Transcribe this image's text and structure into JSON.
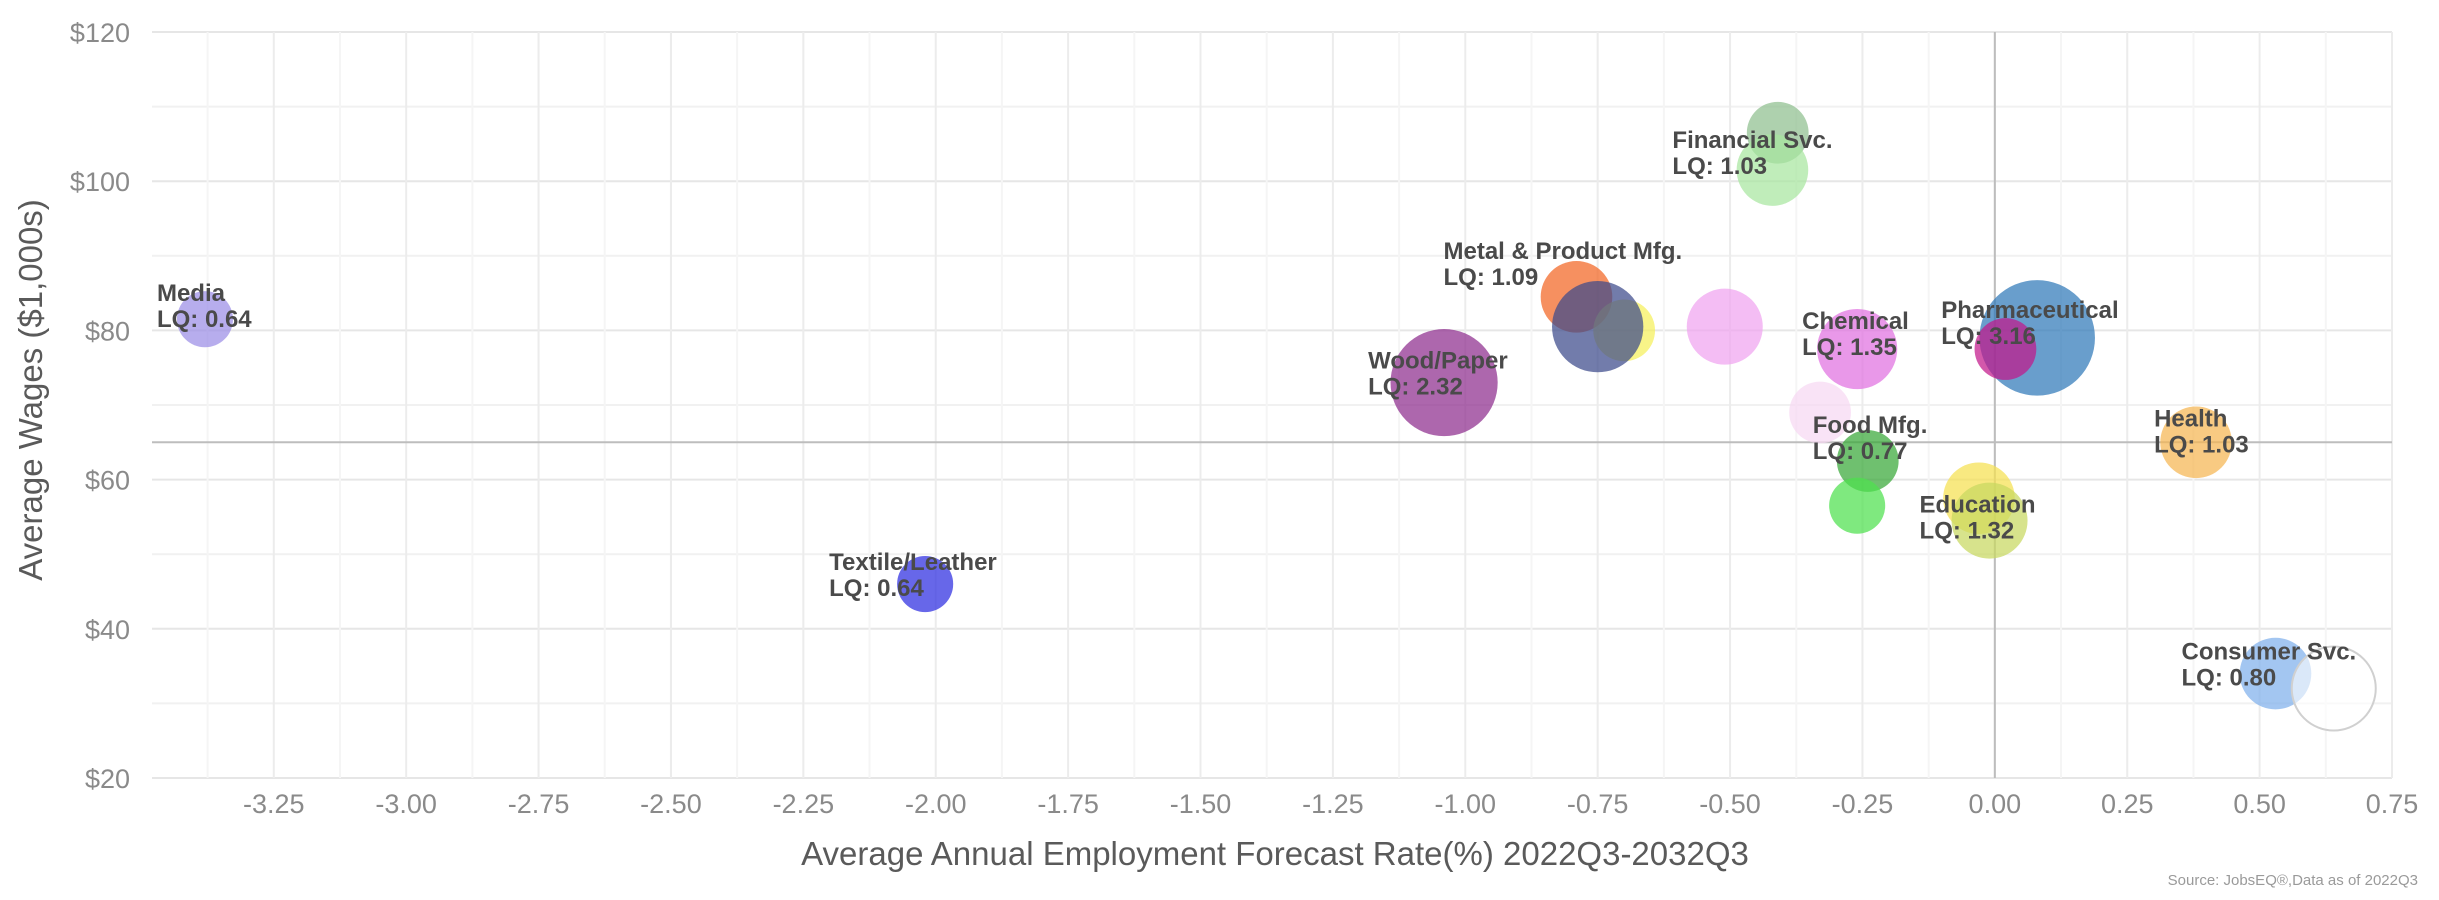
{
  "chart_data": {
    "type": "scatter",
    "subtype": "bubble",
    "xlabel": "Average Annual Employment Forecast Rate(%) 2022Q3-2032Q3",
    "ylabel": "Average Wages ($1,000s)",
    "xlim": [
      -3.48,
      0.75
    ],
    "ylim": [
      20,
      120
    ],
    "x_ticks": [
      "-3.25",
      "-3.00",
      "-2.75",
      "-2.50",
      "-2.25",
      "-2.00",
      "-1.75",
      "-1.50",
      "-1.25",
      "-1.00",
      "-0.75",
      "-0.50",
      "-0.25",
      "0.00",
      "0.25",
      "0.50",
      "0.75"
    ],
    "x_tick_values": [
      -3.25,
      -3.0,
      -2.75,
      -2.5,
      -2.25,
      -2.0,
      -1.75,
      -1.5,
      -1.25,
      -1.0,
      -0.75,
      -0.5,
      -0.25,
      0.0,
      0.25,
      0.5,
      0.75
    ],
    "y_ticks": [
      "$20",
      "$40",
      "$60",
      "$80",
      "$100",
      "$120"
    ],
    "y_tick_values": [
      20,
      40,
      60,
      80,
      100,
      120
    ],
    "reference_lines": {
      "x": 0,
      "y": 65
    },
    "grid": true,
    "source": "Source: JobsEQ®,Data as of 2022Q3",
    "points": [
      {
        "label": "Media",
        "lq": "LQ: 0.64",
        "x": -3.38,
        "y": 81.5,
        "size": 2.0,
        "color": "#9b8de6"
      },
      {
        "label": "Textile/Leather",
        "lq": "LQ: 0.64",
        "x": -2.02,
        "y": 46,
        "size": 2.0,
        "color": "#2c2ce0"
      },
      {
        "label": "Wood/Paper",
        "lq": "LQ: 2.32",
        "x": -1.04,
        "y": 73,
        "size": 8.5,
        "color": "#8e2d8e"
      },
      {
        "label": "Metal & Product Mfg.",
        "lq": "LQ: 1.09",
        "x": -0.79,
        "y": 84.5,
        "size": 3.5,
        "color": "#f26522"
      },
      {
        "label": "",
        "lq": "",
        "x": -0.7,
        "y": 80,
        "size": 2.5,
        "color": "#f5f05a"
      },
      {
        "label": "",
        "lq": "",
        "x": -0.75,
        "y": 80.5,
        "size": 6.0,
        "color": "#3b4a8a"
      },
      {
        "label": "",
        "lq": "",
        "x": -0.51,
        "y": 80.5,
        "size": 4.0,
        "color": "#f0a3f0"
      },
      {
        "label": "",
        "lq": "",
        "x": -0.41,
        "y": 106.5,
        "size": 2.5,
        "color": "#8fbf8f"
      },
      {
        "label": "Financial Svc.",
        "lq": "LQ: 1.03",
        "x": -0.42,
        "y": 101.5,
        "size": 3.5,
        "color": "#a8e6a0"
      },
      {
        "label": "",
        "lq": "",
        "x": -0.33,
        "y": 69,
        "size": 2.5,
        "color": "#f6d8f2"
      },
      {
        "label": "Chemical",
        "lq": "LQ: 1.35",
        "x": -0.26,
        "y": 77.5,
        "size": 4.5,
        "color": "#e070e0"
      },
      {
        "label": "Food Mfg.",
        "lq": "LQ: 0.77",
        "x": -0.24,
        "y": 62.5,
        "size": 2.5,
        "color": "#38a838"
      },
      {
        "label": "",
        "lq": "",
        "x": -0.26,
        "y": 56.5,
        "size": 2.0,
        "color": "#4ee04e"
      },
      {
        "label": "",
        "lq": "",
        "x": -0.03,
        "y": 57.5,
        "size": 3.5,
        "color": "#f5e050"
      },
      {
        "label": "Education",
        "lq": "LQ: 1.32",
        "x": -0.01,
        "y": 54.5,
        "size": 4.0,
        "color": "#c8d860"
      },
      {
        "label": "Pharmaceutical",
        "lq": "LQ: 3.16",
        "x": 0.08,
        "y": 79,
        "size": 10.0,
        "color": "#2f79b8"
      },
      {
        "label": "",
        "lq": "",
        "x": 0.02,
        "y": 77.5,
        "size": 2.5,
        "color": "#c2188a"
      },
      {
        "label": "Health",
        "lq": "LQ: 1.03",
        "x": 0.38,
        "y": 65,
        "size": 3.5,
        "color": "#f5b552"
      },
      {
        "label": "Consumer Svc.",
        "lq": "LQ: 0.80",
        "x": 0.53,
        "y": 34,
        "size": 3.5,
        "color": "#7fb0ec"
      },
      {
        "label": "",
        "lq": "",
        "x": 0.64,
        "y": 32,
        "size": 5.0,
        "color": "#ffffff"
      }
    ]
  }
}
